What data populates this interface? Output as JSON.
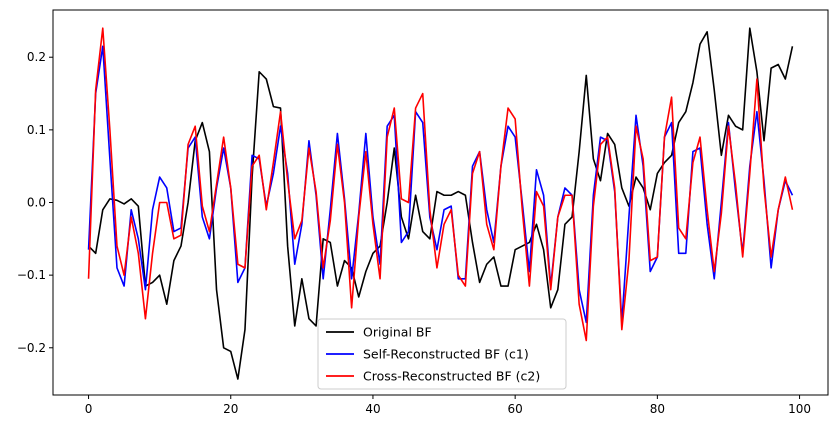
{
  "chart_data": {
    "type": "line",
    "title": "",
    "xlabel": "",
    "ylabel": "",
    "xlim": [
      -5,
      104
    ],
    "ylim": [
      -0.265,
      0.265
    ],
    "x_ticks": [
      0,
      20,
      40,
      60,
      80,
      100
    ],
    "x_tick_labels": [
      "0",
      "20",
      "40",
      "60",
      "80",
      "100"
    ],
    "y_ticks": [
      -0.2,
      -0.1,
      0.0,
      0.1,
      0.2
    ],
    "y_tick_labels": [
      "−0.2",
      "−0.1",
      "0.0",
      "0.1",
      "0.2"
    ],
    "legend_position": "bottom-center",
    "series": [
      {
        "name": "Original BF",
        "color": "#000000",
        "values": [
          -0.06,
          -0.07,
          -0.01,
          0.005,
          0.003,
          -0.002,
          0.005,
          -0.005,
          -0.115,
          -0.11,
          -0.1,
          -0.14,
          -0.08,
          -0.06,
          0.0,
          0.085,
          0.11,
          0.07,
          -0.12,
          -0.2,
          -0.205,
          -0.243,
          -0.175,
          0.035,
          0.18,
          0.17,
          0.132,
          0.13,
          -0.06,
          -0.17,
          -0.105,
          -0.16,
          -0.17,
          -0.05,
          -0.055,
          -0.115,
          -0.08,
          -0.09,
          -0.13,
          -0.095,
          -0.07,
          -0.06,
          0.0,
          0.075,
          -0.02,
          -0.05,
          0.01,
          -0.04,
          -0.05,
          0.015,
          0.01,
          0.01,
          0.015,
          0.01,
          -0.055,
          -0.11,
          -0.085,
          -0.075,
          -0.115,
          -0.115,
          -0.065,
          -0.06,
          -0.055,
          -0.03,
          -0.065,
          -0.145,
          -0.12,
          -0.03,
          -0.02,
          0.07,
          0.175,
          0.06,
          0.03,
          0.095,
          0.08,
          0.02,
          -0.005,
          0.035,
          0.02,
          -0.01,
          0.04,
          0.055,
          0.065,
          0.11,
          0.125,
          0.165,
          0.218,
          0.235,
          0.155,
          0.065,
          0.12,
          0.105,
          0.1,
          0.24,
          0.18,
          0.085,
          0.185,
          0.19,
          0.17,
          0.215
        ]
      },
      {
        "name": "Self-Reconstructed BF (c1)",
        "color": "#0000ff",
        "values": [
          -0.065,
          0.15,
          0.215,
          0.06,
          -0.09,
          -0.115,
          -0.01,
          -0.05,
          -0.12,
          -0.01,
          0.035,
          0.02,
          -0.04,
          -0.035,
          0.075,
          0.09,
          -0.02,
          -0.05,
          0.02,
          0.075,
          0.02,
          -0.11,
          -0.09,
          0.065,
          0.06,
          -0.005,
          0.04,
          0.105,
          0.04,
          -0.085,
          -0.03,
          0.085,
          0.01,
          -0.105,
          -0.01,
          0.095,
          0.005,
          -0.105,
          -0.015,
          0.095,
          -0.02,
          -0.085,
          0.105,
          0.12,
          -0.055,
          -0.04,
          0.125,
          0.11,
          -0.02,
          -0.065,
          -0.01,
          -0.005,
          -0.105,
          -0.105,
          0.05,
          0.07,
          -0.01,
          -0.055,
          0.05,
          0.105,
          0.09,
          0.0,
          -0.095,
          0.045,
          0.01,
          -0.115,
          -0.02,
          0.02,
          0.01,
          -0.12,
          -0.165,
          0.01,
          0.09,
          0.085,
          0.015,
          -0.165,
          -0.02,
          0.12,
          0.05,
          -0.095,
          -0.075,
          0.09,
          0.11,
          -0.07,
          -0.07,
          0.07,
          0.075,
          -0.03,
          -0.105,
          0.0,
          0.11,
          0.015,
          -0.07,
          0.05,
          0.125,
          0.03,
          -0.09,
          -0.01,
          0.03,
          0.01
        ]
      },
      {
        "name": "Cross-Reconstructed BF (c2)",
        "color": "#ff0000",
        "values": [
          -0.105,
          0.155,
          0.24,
          0.1,
          -0.06,
          -0.1,
          -0.02,
          -0.07,
          -0.16,
          -0.07,
          0.0,
          0.0,
          -0.05,
          -0.045,
          0.08,
          0.105,
          -0.005,
          -0.04,
          0.025,
          0.09,
          0.02,
          -0.085,
          -0.09,
          0.05,
          0.065,
          -0.01,
          0.055,
          0.125,
          0.03,
          -0.05,
          -0.025,
          0.075,
          0.015,
          -0.09,
          -0.025,
          0.08,
          0.0,
          -0.145,
          -0.02,
          0.07,
          -0.03,
          -0.105,
          0.09,
          0.13,
          0.005,
          0.0,
          0.13,
          0.15,
          -0.01,
          -0.09,
          -0.03,
          -0.01,
          -0.1,
          -0.115,
          0.04,
          0.07,
          -0.03,
          -0.065,
          0.05,
          0.13,
          0.115,
          -0.01,
          -0.115,
          0.015,
          -0.005,
          -0.12,
          -0.02,
          0.01,
          0.01,
          -0.14,
          -0.19,
          -0.005,
          0.08,
          0.09,
          0.02,
          -0.175,
          -0.08,
          0.105,
          0.06,
          -0.08,
          -0.075,
          0.09,
          0.145,
          -0.035,
          -0.05,
          0.055,
          0.09,
          -0.01,
          -0.095,
          -0.015,
          0.105,
          0.025,
          -0.075,
          0.04,
          0.17,
          0.02,
          -0.075,
          -0.01,
          0.035,
          -0.01
        ]
      }
    ]
  }
}
